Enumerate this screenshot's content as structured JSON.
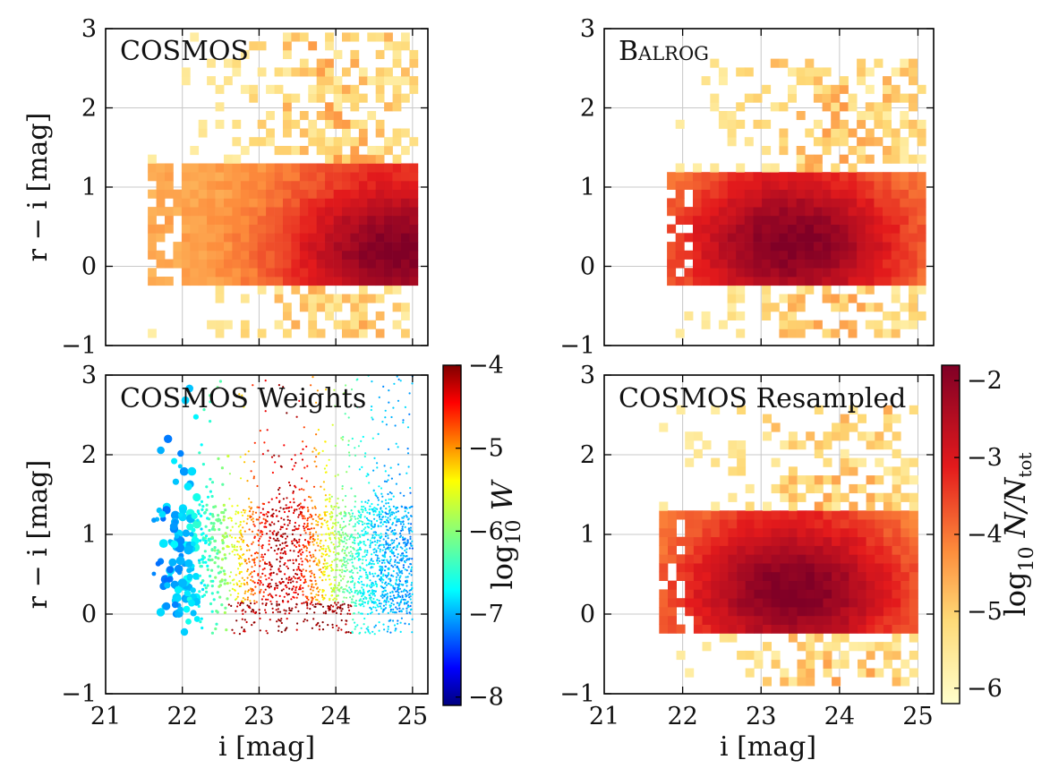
{
  "chart_data": [
    {
      "type": "heatmap",
      "title": "COSMOS",
      "title_small_caps": false,
      "xlabel": "",
      "ylabel": "r − i [mag]",
      "xlim": [
        21,
        25.2
      ],
      "ylim": [
        -1,
        3
      ],
      "yticks": [
        -1,
        0,
        1,
        2,
        3
      ],
      "ytick_labels": [
        "−1",
        "0",
        "1",
        "2",
        "3"
      ],
      "xticks": [
        21,
        22,
        23,
        24,
        25
      ],
      "xtick_labels": [],
      "bin_width_mag": 0.11,
      "colormap": "YlOrRd",
      "color_log_range": [
        -6.2,
        -1.8
      ],
      "distribution": {
        "i_range": [
          21.55,
          25.0
        ],
        "core_r_minus_i": [
          0.0,
          1.3
        ],
        "peak_i": 24.8,
        "peak_r_minus_i": 0.2,
        "sparse_outliers_up_to": 3.0
      }
    },
    {
      "type": "heatmap",
      "title": "Balrog",
      "title_small_caps": true,
      "xlabel": "",
      "ylabel": "",
      "xlim": [
        21,
        25.2
      ],
      "ylim": [
        -1,
        3
      ],
      "yticks": [
        -1,
        0,
        1,
        2,
        3
      ],
      "ytick_labels": [
        "−1",
        "0",
        "1",
        "2",
        "3"
      ],
      "xticks": [
        21,
        22,
        23,
        24,
        25
      ],
      "xtick_labels": [],
      "bin_width_mag": 0.11,
      "colormap": "YlOrRd",
      "color_log_range": [
        -6.2,
        -1.8
      ],
      "distribution": {
        "i_range": [
          21.8,
          25.0
        ],
        "core_r_minus_i": [
          0.0,
          1.2
        ],
        "peak_i": 23.4,
        "peak_r_minus_i": 0.3,
        "sparse_outliers_up_to": 2.6
      }
    },
    {
      "type": "scatter",
      "title": "COSMOS Weights",
      "xlabel": "i [mag]",
      "ylabel": "r − i [mag]",
      "xlim": [
        21,
        25.2
      ],
      "ylim": [
        -1,
        3
      ],
      "xticks": [
        21,
        22,
        23,
        24,
        25
      ],
      "xtick_labels": [
        "21",
        "22",
        "23",
        "24",
        "25"
      ],
      "yticks": [
        -1,
        0,
        1,
        2,
        3
      ],
      "ytick_labels": [
        "−1",
        "0",
        "1",
        "2",
        "3"
      ],
      "colormap": "jet",
      "color_quantity": "log10 W",
      "colorbar": {
        "label": "log10 W",
        "label_main": "log",
        "label_sub": "10",
        "label_var": "W",
        "range": [
          -8.1,
          -4.0
        ],
        "ticks": [
          -8,
          -7,
          -6,
          -5,
          -4
        ],
        "tick_labels": [
          "−8",
          "−7",
          "−6",
          "−5",
          "−4"
        ]
      },
      "distribution": {
        "i_range": [
          21.55,
          25.0
        ],
        "core_r_minus_i": [
          0.0,
          1.35
        ],
        "highest_weight_i": [
          22.8,
          24.2
        ],
        "lowest_weight_i": [
          21.55,
          22.2
        ]
      }
    },
    {
      "type": "heatmap",
      "title": "COSMOS Resampled",
      "xlabel": "i [mag]",
      "ylabel": "",
      "xlim": [
        21,
        25.2
      ],
      "ylim": [
        -1,
        3
      ],
      "xticks": [
        21,
        22,
        23,
        24,
        25
      ],
      "xtick_labels": [
        "21",
        "22",
        "23",
        "24",
        "25"
      ],
      "yticks": [
        -1,
        0,
        1,
        2,
        3
      ],
      "ytick_labels": [
        "−1",
        "0",
        "1",
        "2",
        "3"
      ],
      "bin_width_mag": 0.11,
      "colormap": "YlOrRd",
      "color_log_range": [
        -6.2,
        -1.8
      ],
      "colorbar": {
        "label": "log10 N/Ntot",
        "label_main": "log",
        "label_sub": "10",
        "label_var": "N/N",
        "label_var_sub": "tot",
        "range": [
          -6.2,
          -1.8
        ],
        "ticks": [
          -6,
          -5,
          -4,
          -3,
          -2
        ],
        "tick_labels": [
          "−6",
          "−5",
          "−4",
          "−3",
          "−2"
        ]
      },
      "distribution": {
        "i_range": [
          21.7,
          25.0
        ],
        "core_r_minus_i": [
          0.0,
          1.3
        ],
        "peak_i": 23.4,
        "peak_r_minus_i": 0.3,
        "sparse_outliers_up_to": 2.6
      }
    }
  ]
}
